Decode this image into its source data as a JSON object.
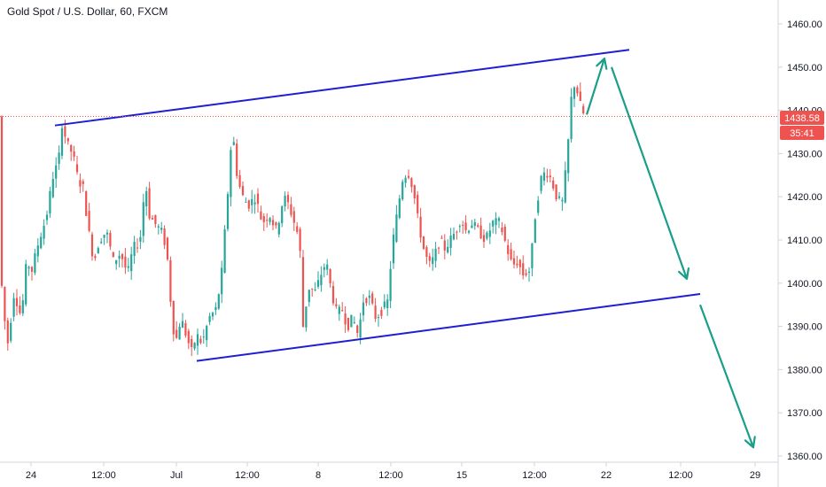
{
  "header": {
    "title": "Gold Spot / U.S. Dollar, 60, FXCM"
  },
  "price_badge": {
    "price": "1438.58",
    "countdown": "35:41",
    "color": "#ef5350"
  },
  "colors": {
    "up": "#26a69a",
    "down": "#ef5350",
    "channel": "#1e1ed2",
    "arrow": "#199e8a",
    "axis": "#d1d4dc"
  },
  "chart_data": {
    "type": "candlestick",
    "title": "Gold Spot / U.S. Dollar, 60, FXCM",
    "ylim": [
      1356,
      1470
    ],
    "xlim": [
      0,
      878
    ],
    "y_ticks": [
      1360,
      1370,
      1380,
      1390,
      1400,
      1410,
      1420,
      1430,
      1440,
      1450,
      1460
    ],
    "y_tick_labels": [
      "1360.00",
      "1370.00",
      "1380.00",
      "1390.00",
      "1400.00",
      "1410.00",
      "1420.00",
      "1430.00",
      "1440.00",
      "1450.00",
      "1460.00"
    ],
    "x_ticks": [
      {
        "label": "24",
        "x": 35
      },
      {
        "label": "12:00",
        "x": 117
      },
      {
        "label": "Jul",
        "x": 199
      },
      {
        "label": "12:00",
        "x": 279
      },
      {
        "label": "8",
        "x": 359
      },
      {
        "label": "12:00",
        "x": 441
      },
      {
        "label": "15",
        "x": 521
      },
      {
        "label": "12:00",
        "x": 603
      },
      {
        "label": "22",
        "x": 684
      },
      {
        "label": "12:00",
        "x": 768
      },
      {
        "label": "29",
        "x": 852
      }
    ],
    "current_price": 1438.58,
    "price_path": [
      [
        0,
        1404
      ],
      [
        8,
        1385
      ],
      [
        16,
        1398
      ],
      [
        24,
        1392
      ],
      [
        30,
        1405
      ],
      [
        36,
        1403
      ],
      [
        44,
        1410
      ],
      [
        52,
        1415
      ],
      [
        60,
        1425
      ],
      [
        66,
        1428
      ],
      [
        70,
        1437
      ],
      [
        76,
        1432
      ],
      [
        82,
        1430
      ],
      [
        88,
        1424
      ],
      [
        94,
        1422
      ],
      [
        100,
        1412
      ],
      [
        106,
        1405
      ],
      [
        112,
        1410
      ],
      [
        120,
        1412
      ],
      [
        128,
        1405
      ],
      [
        136,
        1407
      ],
      [
        144,
        1402
      ],
      [
        150,
        1408
      ],
      [
        158,
        1410
      ],
      [
        164,
        1424
      ],
      [
        168,
        1416
      ],
      [
        174,
        1414
      ],
      [
        182,
        1412
      ],
      [
        188,
        1408
      ],
      [
        194,
        1392
      ],
      [
        198,
        1386
      ],
      [
        204,
        1392
      ],
      [
        210,
        1388
      ],
      [
        216,
        1384
      ],
      [
        222,
        1388
      ],
      [
        228,
        1386
      ],
      [
        236,
        1392
      ],
      [
        244,
        1394
      ],
      [
        250,
        1402
      ],
      [
        256,
        1418
      ],
      [
        262,
        1436
      ],
      [
        268,
        1424
      ],
      [
        274,
        1420
      ],
      [
        280,
        1418
      ],
      [
        288,
        1420
      ],
      [
        296,
        1414
      ],
      [
        304,
        1416
      ],
      [
        312,
        1412
      ],
      [
        320,
        1420
      ],
      [
        326,
        1418
      ],
      [
        332,
        1414
      ],
      [
        338,
        1410
      ],
      [
        342,
        1390
      ],
      [
        348,
        1399
      ],
      [
        356,
        1398
      ],
      [
        362,
        1402
      ],
      [
        368,
        1405
      ],
      [
        374,
        1398
      ],
      [
        380,
        1393
      ],
      [
        386,
        1394
      ],
      [
        392,
        1390
      ],
      [
        398,
        1392
      ],
      [
        404,
        1388
      ],
      [
        410,
        1396
      ],
      [
        416,
        1397
      ],
      [
        424,
        1392
      ],
      [
        432,
        1394
      ],
      [
        438,
        1396
      ],
      [
        442,
        1408
      ],
      [
        448,
        1416
      ],
      [
        454,
        1424
      ],
      [
        460,
        1426
      ],
      [
        466,
        1422
      ],
      [
        472,
        1414
      ],
      [
        478,
        1408
      ],
      [
        484,
        1404
      ],
      [
        490,
        1406
      ],
      [
        496,
        1410
      ],
      [
        502,
        1408
      ],
      [
        508,
        1410
      ],
      [
        514,
        1412
      ],
      [
        520,
        1415
      ],
      [
        526,
        1412
      ],
      [
        532,
        1414
      ],
      [
        540,
        1412
      ],
      [
        548,
        1410
      ],
      [
        556,
        1414
      ],
      [
        564,
        1414
      ],
      [
        572,
        1408
      ],
      [
        578,
        1404
      ],
      [
        584,
        1405
      ],
      [
        590,
        1402
      ],
      [
        598,
        1403
      ],
      [
        604,
        1416
      ],
      [
        610,
        1424
      ],
      [
        616,
        1426
      ],
      [
        622,
        1424
      ],
      [
        628,
        1420
      ],
      [
        634,
        1418
      ],
      [
        640,
        1429
      ],
      [
        644,
        1442
      ],
      [
        648,
        1446
      ],
      [
        652,
        1444
      ],
      [
        656,
        1440
      ],
      [
        660,
        1438.58
      ]
    ],
    "annotations": {
      "channel_upper": [
        [
          62,
          1436.5
        ],
        [
          710,
          1454
        ]
      ],
      "channel_lower": [
        [
          222,
          1382
        ],
        [
          790,
          1397.5
        ]
      ],
      "arrows": [
        [
          [
            662,
            1439
          ],
          [
            682,
            1452
          ]
        ],
        [
          [
            690,
            1450
          ],
          [
            775,
            1401
          ]
        ],
        [
          [
            790,
            1395
          ],
          [
            850,
            1362
          ]
        ]
      ]
    }
  }
}
